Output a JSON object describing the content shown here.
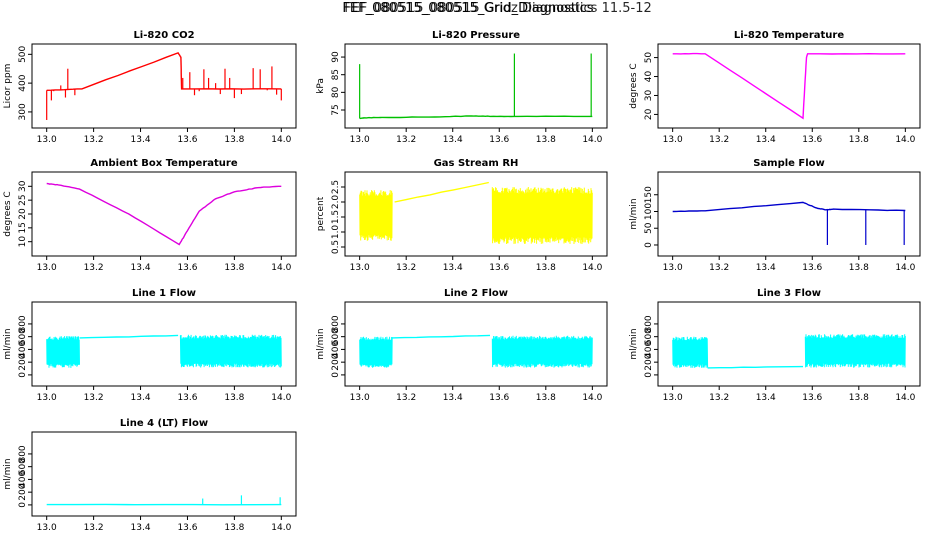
{
  "page": {
    "title_a": "FEF_080515_080515_Grid_Diagnostics",
    "title_b": "FEF_080515_080515 Gridz Diagnostics 11.5-12"
  },
  "chart_data": [
    {
      "type": "line",
      "title": "Li-820 CO2",
      "ylabel": "Licor ppm",
      "color": "#ff0000",
      "xlim": [
        12.98,
        14.02
      ],
      "ylim": [
        265,
        515
      ],
      "yticks": [
        300,
        400,
        500
      ],
      "xticks": [
        13.0,
        13.2,
        13.4,
        13.6,
        13.8,
        14.0
      ],
      "trace": [
        [
          13.0,
          375
        ],
        [
          13.15,
          380
        ],
        [
          13.56,
          505
        ],
        [
          13.572,
          490
        ],
        [
          13.575,
          380
        ],
        [
          14.0,
          380
        ]
      ],
      "spikes": [
        [
          13.0,
          272
        ],
        [
          13.01,
          375
        ],
        [
          13.02,
          340
        ],
        [
          13.03,
          372
        ],
        [
          13.06,
          392
        ],
        [
          13.08,
          350
        ],
        [
          13.09,
          450
        ],
        [
          13.12,
          358
        ],
        [
          13.58,
          418
        ],
        [
          13.61,
          438
        ],
        [
          13.63,
          358
        ],
        [
          13.65,
          372
        ],
        [
          13.67,
          448
        ],
        [
          13.69,
          418
        ],
        [
          13.72,
          400
        ],
        [
          13.74,
          362
        ],
        [
          13.76,
          450
        ],
        [
          13.78,
          418
        ],
        [
          13.8,
          348
        ],
        [
          13.83,
          362
        ],
        [
          13.88,
          452
        ],
        [
          13.91,
          448
        ],
        [
          13.94,
          375
        ],
        [
          13.96,
          458
        ],
        [
          13.98,
          360
        ],
        [
          14.0,
          340
        ]
      ]
    },
    {
      "type": "line",
      "title": "Li-820 Pressure",
      "ylabel": "kPa",
      "color": "#00c000",
      "xlim": [
        12.98,
        14.02
      ],
      "ylim": [
        71.6,
        92
      ],
      "yticks": [
        75,
        80,
        85,
        90
      ],
      "xticks": [
        13.0,
        13.2,
        13.4,
        13.6,
        13.8,
        14.0
      ],
      "trace": [
        [
          13.0,
          72.6
        ],
        [
          13.02,
          72.8
        ],
        [
          13.1,
          72.9
        ],
        [
          13.3,
          73.0
        ],
        [
          13.48,
          73.3
        ],
        [
          13.56,
          73.2
        ],
        [
          13.68,
          73.2
        ],
        [
          14.0,
          73.2
        ]
      ],
      "spikes": [
        [
          13.0,
          88
        ],
        [
          13.665,
          91
        ],
        [
          13.995,
          91
        ]
      ]
    },
    {
      "type": "line",
      "title": "Li-820 Temperature",
      "ylabel": "degrees C",
      "color": "#ff00ff",
      "xlim": [
        12.98,
        14.02
      ],
      "ylim": [
        16,
        54
      ],
      "yticks": [
        20,
        30,
        40,
        50
      ],
      "xticks": [
        13.0,
        13.2,
        13.4,
        13.6,
        13.8,
        14.0
      ],
      "trace": [
        [
          13.0,
          52
        ],
        [
          13.14,
          52
        ],
        [
          13.56,
          18
        ],
        [
          13.575,
          50
        ],
        [
          13.58,
          52
        ],
        [
          14.0,
          52
        ]
      ],
      "spikes": []
    },
    {
      "type": "line",
      "title": "Ambient Box Temperature",
      "ylabel": "degrees C",
      "color": "#dd00dd",
      "xlim": [
        12.98,
        14.02
      ],
      "ylim": [
        7,
        33
      ],
      "yticks": [
        10,
        15,
        20,
        25,
        30
      ],
      "xticks": [
        13.0,
        13.2,
        13.4,
        13.6,
        13.8,
        14.0
      ],
      "trace": [
        [
          13.0,
          31
        ],
        [
          13.05,
          30.5
        ],
        [
          13.14,
          29
        ],
        [
          13.35,
          20
        ],
        [
          13.565,
          9
        ],
        [
          13.6,
          14
        ],
        [
          13.65,
          21
        ],
        [
          13.72,
          25.5
        ],
        [
          13.8,
          28
        ],
        [
          13.9,
          29.5
        ],
        [
          14.0,
          30
        ]
      ],
      "spikes": []
    },
    {
      "type": "band",
      "title": "Gas Stream RH",
      "ylabel": "percent",
      "color": "#ffff00",
      "xlim": [
        12.98,
        14.02
      ],
      "ylim": [
        0.4,
        2.8
      ],
      "yticks": [
        0.5,
        1.0,
        1.5,
        2.0,
        2.5
      ],
      "xticks": [
        13.0,
        13.2,
        13.4,
        13.6,
        13.8,
        14.0
      ],
      "trace": [
        [
          13.15,
          2.0
        ],
        [
          13.555,
          2.65
        ]
      ],
      "bands": [
        [
          13.0,
          13.14,
          0.7,
          2.4
        ],
        [
          13.57,
          14.0,
          0.6,
          2.5
        ]
      ]
    },
    {
      "type": "line",
      "title": "Sample Flow",
      "ylabel": "ml/min",
      "color": "#0000cc",
      "xlim": [
        12.98,
        14.02
      ],
      "ylim": [
        -15,
        200
      ],
      "yticks": [
        0,
        50,
        100,
        150
      ],
      "xticks": [
        13.0,
        13.2,
        13.4,
        13.6,
        13.8,
        14.0
      ],
      "trace": [
        [
          13.0,
          100
        ],
        [
          13.14,
          102
        ],
        [
          13.56,
          127
        ],
        [
          13.62,
          110
        ],
        [
          13.66,
          105
        ],
        [
          13.69,
          107
        ],
        [
          14.0,
          103
        ]
      ],
      "spikes": [
        [
          13.665,
          0
        ],
        [
          13.83,
          0
        ],
        [
          13.995,
          0
        ]
      ]
    },
    {
      "type": "band",
      "title": "Line 1 Flow",
      "ylabel": "ml/min",
      "color": "#00ffff",
      "xlim": [
        12.98,
        14.02
      ],
      "ylim": [
        -80,
        1050
      ],
      "yticks": [
        0,
        200,
        400,
        600,
        800
      ],
      "xticks": [
        13.0,
        13.2,
        13.4,
        13.6,
        13.8,
        14.0
      ],
      "trace": [
        [
          13.14,
          580
        ],
        [
          13.56,
          620
        ]
      ],
      "bands": [
        [
          13.0,
          13.14,
          110,
          610
        ],
        [
          13.57,
          14.0,
          115,
          630
        ]
      ]
    },
    {
      "type": "band",
      "title": "Line 2 Flow",
      "ylabel": "ml/min",
      "color": "#00ffff",
      "xlim": [
        12.98,
        14.02
      ],
      "ylim": [
        -80,
        1050
      ],
      "yticks": [
        0,
        200,
        400,
        600,
        800
      ],
      "xticks": [
        13.0,
        13.2,
        13.4,
        13.6,
        13.8,
        14.0
      ],
      "trace": [
        [
          13.14,
          580
        ],
        [
          13.56,
          620
        ]
      ],
      "bands": [
        [
          13.0,
          13.14,
          110,
          600
        ],
        [
          13.57,
          14.0,
          115,
          615
        ]
      ]
    },
    {
      "type": "band",
      "title": "Line 3 Flow",
      "ylabel": "ml/min",
      "color": "#00ffff",
      "xlim": [
        12.98,
        14.02
      ],
      "ylim": [
        -80,
        1050
      ],
      "yticks": [
        0,
        200,
        400,
        600,
        800
      ],
      "xticks": [
        13.0,
        13.2,
        13.4,
        13.6,
        13.8,
        14.0
      ],
      "trace": [
        [
          13.15,
          110
        ],
        [
          13.56,
          130
        ]
      ],
      "bands": [
        [
          13.0,
          13.15,
          110,
          600
        ],
        [
          13.57,
          14.0,
          115,
          640
        ]
      ]
    },
    {
      "type": "line",
      "title": "Line 4 (LT) Flow",
      "ylabel": "ml/min",
      "color": "#00ffff",
      "xlim": [
        12.98,
        14.02
      ],
      "ylim": [
        -80,
        1050
      ],
      "yticks": [
        0,
        200,
        400,
        600,
        800
      ],
      "xticks": [
        13.0,
        13.2,
        13.4,
        13.6,
        13.8,
        14.0
      ],
      "trace": [
        [
          13.0,
          5
        ],
        [
          14.0,
          5
        ]
      ],
      "spikes": [
        [
          13.665,
          100
        ],
        [
          13.83,
          150
        ],
        [
          13.995,
          120
        ]
      ]
    }
  ]
}
